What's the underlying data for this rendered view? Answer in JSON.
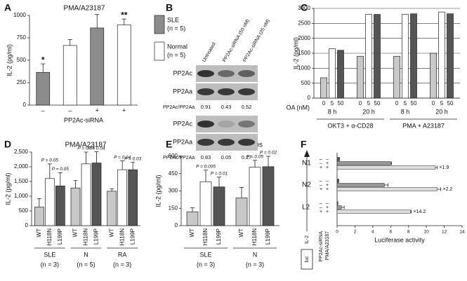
{
  "chart_data": [
    {
      "panel": "A",
      "type": "bar",
      "title": "PMA/A23187",
      "ylabel": "IL-2 (pg/ml)",
      "xlabel": "PP2Ac-siRNA",
      "categories": [
        "–",
        "–",
        "+",
        "+"
      ],
      "series": [
        {
          "name": "SLE",
          "note": "(n = 5)",
          "color": "#8c8c8c",
          "values": [
            365,
            null,
            860,
            null
          ],
          "errors": [
            95,
            null,
            150,
            null
          ],
          "annotations": [
            "*",
            null,
            null,
            null
          ]
        },
        {
          "name": "Normal",
          "note": "(n = 5)",
          "color": "#ffffff",
          "values": [
            null,
            665,
            null,
            895
          ],
          "errors": [
            null,
            65,
            null,
            65
          ],
          "annotations": [
            null,
            null,
            null,
            "**"
          ]
        }
      ],
      "ylim": [
        0,
        1000
      ],
      "yticks": [
        0,
        250,
        500,
        750,
        1000
      ]
    },
    {
      "panel": "C",
      "type": "bar",
      "ylabel": "IL-2 (pg/ml)",
      "xlabel": "OA (nM)",
      "categories": [
        "8 h",
        "20 h",
        "8 h",
        "20 h"
      ],
      "groups": [
        "OKT3 + α-CD28",
        "PMA + A23187"
      ],
      "series": [
        {
          "name": "0",
          "color": "#c8c8c8",
          "values": [
            680,
            1400,
            1400,
            1500
          ]
        },
        {
          "name": "5",
          "color": "#ffffff",
          "values": [
            1650,
            2800,
            2800,
            2880
          ]
        },
        {
          "name": "50",
          "color": "#555555",
          "values": [
            1600,
            2800,
            2820,
            2820
          ]
        }
      ],
      "ylim": [
        0,
        3000
      ],
      "yticks": [
        0,
        500,
        1000,
        1500,
        2000,
        2500,
        3000
      ],
      "grid": true
    },
    {
      "panel": "D",
      "type": "bar",
      "title": "PMA/A23187",
      "ylabel": "IL-2 (pg/ml)",
      "categories": [
        "SLE",
        "N",
        "RA"
      ],
      "category_notes": [
        "(n = 3)",
        "(n = 5)",
        "(n = 3)"
      ],
      "series": [
        {
          "name": "WT",
          "color": "#c8c8c8",
          "values": [
            630,
            1280,
            1170
          ],
          "errors": [
            290,
            250,
            80
          ]
        },
        {
          "name": "H118N",
          "color": "#ffffff",
          "values": [
            1600,
            2100,
            1900
          ],
          "errors": [
            500,
            400,
            300
          ],
          "annotations": [
            "P = 0.05",
            "P = 0.04",
            "P = 0.04"
          ]
        },
        {
          "name": "L199P",
          "color": "#555555",
          "values": [
            1350,
            2130,
            1900
          ],
          "errors": [
            450,
            380,
            250
          ],
          "annotations": [
            "P = 0.05",
            "P = 0.04",
            "P = 0.03"
          ]
        }
      ],
      "ylim": [
        0,
        2500
      ],
      "yticks": [
        0,
        500,
        {
          "value": 1000,
          "label": "1,000"
        },
        {
          "value": 1500,
          "label": "1,500"
        },
        {
          "value": 2000,
          "label": "2,000"
        },
        {
          "value": 2500,
          "label": "2,500"
        }
      ]
    },
    {
      "panel": "E",
      "type": "bar",
      "title": "OKT3/α-CD28 mAbs",
      "ylabel": "IL-2 (pg/ml)",
      "categories": [
        "SLE",
        "N"
      ],
      "category_notes": [
        "(n = 3)",
        "(n = 3)"
      ],
      "series": [
        {
          "name": "WT",
          "color": "#c8c8c8",
          "values": [
            120,
            240
          ],
          "errors": [
            35,
            90
          ]
        },
        {
          "name": "H118N",
          "color": "#ffffff",
          "values": [
            380,
            505
          ],
          "errors": [
            100,
            60
          ],
          "annotations": [
            "P = 0.005",
            "P = 0.05"
          ]
        },
        {
          "name": "L199P",
          "color": "#555555",
          "values": [
            335,
            510
          ],
          "errors": [
            85,
            90
          ],
          "annotations": [
            "P = 0.01",
            "P = 0.02"
          ]
        }
      ],
      "ylim": [
        0,
        600
      ],
      "yticks": [
        0,
        150,
        300,
        450,
        600
      ]
    },
    {
      "panel": "F",
      "type": "barh",
      "xlabel": "Luciferase activity",
      "categories": [
        "N1",
        "N2",
        "L2"
      ],
      "condition_labels": [
        "PP2Ac-siRNA",
        "PMA/A23187"
      ],
      "gene": "IL-2",
      "reporter": "luc",
      "series": [
        {
          "signs": [
            "–",
            "–"
          ],
          "color": "#555555",
          "values": [
            0.3,
            0.2,
            0.1
          ]
        },
        {
          "signs": [
            "–",
            "+"
          ],
          "color": "#999999",
          "values": [
            6.0,
            5.3,
            0.5
          ],
          "errors": [
            0.1,
            0.4,
            0.3
          ]
        },
        {
          "signs": [
            "+",
            "+"
          ],
          "color": "#dddddd",
          "values": [
            11.0,
            11.2,
            8.2
          ],
          "errors": [
            0.2,
            0.4,
            0.1
          ],
          "annotations": [
            "×1.9",
            "×2.2",
            "×14.2"
          ]
        }
      ],
      "xlim": [
        0,
        14
      ],
      "xticks": [
        0,
        2,
        4,
        6,
        8,
        10,
        12,
        14
      ]
    }
  ],
  "blot": {
    "panel": "B",
    "lanes": [
      "Untreated",
      "PP2Ac-siRNA (50 nM)",
      "PP2Ac-siRNA (25 nM)"
    ],
    "blocks": [
      {
        "rows": [
          "PP2Ac",
          "PP2Aa"
        ],
        "ratio_label": "PP2Ac/PP2Aa",
        "ratios": [
          0.91,
          0.43,
          0.52
        ]
      },
      {
        "rows": [
          "PP2Ac",
          "PP2Aa"
        ],
        "ratio_label": "PP2Ac/PP2Aa",
        "ratios": [
          0.83,
          0.05,
          0.27
        ]
      }
    ]
  }
}
